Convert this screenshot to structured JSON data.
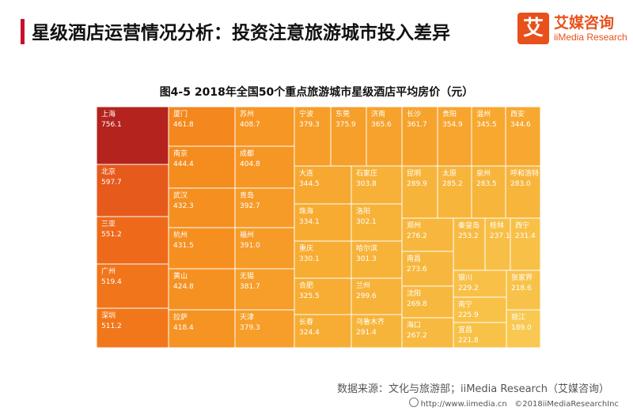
{
  "header": {
    "title": "星级酒店运营情况分析：投资注意旅游城市投入差异"
  },
  "logo": {
    "mark": "艾",
    "name_cn": "艾媒咨询",
    "name_en": "iiMedia Research"
  },
  "chart_data": {
    "type": "treemap",
    "title": "图4-5 2018年全国50个重点旅游城市星级酒店平均房价（元）",
    "items": [
      {
        "name": "上海",
        "value": 756.1
      },
      {
        "name": "北京",
        "value": 597.7
      },
      {
        "name": "三亚",
        "value": 551.2
      },
      {
        "name": "广州",
        "value": 519.4
      },
      {
        "name": "深圳",
        "value": 511.2
      },
      {
        "name": "厦门",
        "value": 461.8
      },
      {
        "name": "南京",
        "value": 444.4
      },
      {
        "name": "武汉",
        "value": 432.3
      },
      {
        "name": "杭州",
        "value": 431.5
      },
      {
        "name": "黄山",
        "value": 424.8
      },
      {
        "name": "拉萨",
        "value": 418.4
      },
      {
        "name": "苏州",
        "value": 408.7
      },
      {
        "name": "成都",
        "value": 404.8
      },
      {
        "name": "青岛",
        "value": 392.7
      },
      {
        "name": "福州",
        "value": 391.0
      },
      {
        "name": "无锡",
        "value": 381.7
      },
      {
        "name": "天津",
        "value": 379.3
      },
      {
        "name": "宁波",
        "value": 379.3
      },
      {
        "name": "东莞",
        "value": 375.9
      },
      {
        "name": "济南",
        "value": 365.6
      },
      {
        "name": "长沙",
        "value": 361.7
      },
      {
        "name": "贵阳",
        "value": 354.9
      },
      {
        "name": "温州",
        "value": 345.5
      },
      {
        "name": "西安",
        "value": 344.6
      },
      {
        "name": "大连",
        "value": 344.5
      },
      {
        "name": "珠海",
        "value": 334.1
      },
      {
        "name": "重庆",
        "value": 330.1
      },
      {
        "name": "合肥",
        "value": 325.5
      },
      {
        "name": "长春",
        "value": 324.4
      },
      {
        "name": "石家庄",
        "value": 303.8
      },
      {
        "name": "洛阳",
        "value": 302.1
      },
      {
        "name": "哈尔滨",
        "value": 301.3
      },
      {
        "name": "兰州",
        "value": 299.6
      },
      {
        "name": "乌鲁木齐",
        "value": 291.4
      },
      {
        "name": "昆明",
        "value": 289.9
      },
      {
        "name": "太原",
        "value": 285.2
      },
      {
        "name": "泉州",
        "value": 283.5
      },
      {
        "name": "呼和浩特",
        "value": 283.0
      },
      {
        "name": "郑州",
        "value": 276.2
      },
      {
        "name": "南昌",
        "value": 273.6
      },
      {
        "name": "沈阳",
        "value": 269.8
      },
      {
        "name": "海口",
        "value": 267.2
      },
      {
        "name": "秦皇岛",
        "value": 253.2
      },
      {
        "name": "桂林",
        "value": 237.1
      },
      {
        "name": "西宁",
        "value": 231.4
      },
      {
        "name": "银川",
        "value": 229.2
      },
      {
        "name": "南宁",
        "value": 225.9
      },
      {
        "name": "宜昌",
        "value": 221.8
      },
      {
        "name": "张家界",
        "value": 218.6
      },
      {
        "name": "丽江",
        "value": 189.0
      }
    ]
  },
  "footer": {
    "source": "数据来源：文化与旅游部；iiMedia Research（艾媒咨询）",
    "website": "http://www.iimedia.cn",
    "copyright": "©2018iiMediaResearchInc"
  }
}
